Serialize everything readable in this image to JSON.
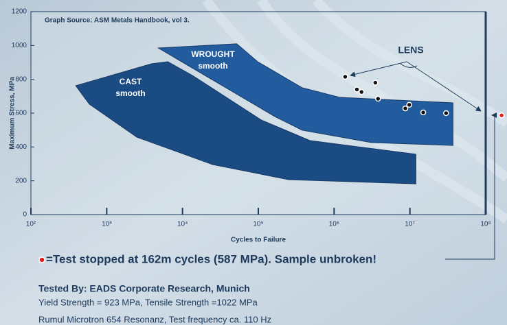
{
  "chart_data": {
    "type": "scatter",
    "annotation": "Graph Source: ASM Metals Handbook, vol 3.",
    "xlabel": "Cycles to Failure",
    "ylabel": "Maximum Stress, MPa",
    "xscale": "log",
    "xlim": [
      100,
      100000000
    ],
    "ylim": [
      0,
      1200
    ],
    "xticks": [
      {
        "value": 100,
        "label": "10²"
      },
      {
        "value": 1000,
        "label": "10³"
      },
      {
        "value": 10000,
        "label": "10⁴"
      },
      {
        "value": 100000,
        "label": "10⁵"
      },
      {
        "value": 1000000,
        "label": "10⁶"
      },
      {
        "value": 10000000,
        "label": "10⁷"
      },
      {
        "value": 100000000,
        "label": "10⁸"
      }
    ],
    "yticks": [
      0,
      200,
      400,
      600,
      800,
      1000,
      1200
    ],
    "regions": [
      {
        "name": "CAST",
        "note": "smooth",
        "color": "#1b4b83",
        "x": [
          390,
          3900,
          6400,
          13500,
          110000,
          480000,
          12000000,
          12000000,
          250000,
          25000,
          2500,
          590
        ],
        "values": [
          762,
          892,
          904,
          823,
          559,
          438,
          357,
          182,
          207,
          296,
          458,
          653
        ]
      },
      {
        "name": "WROUGHT",
        "note": "smooth",
        "color": "#225c9f",
        "x": [
          4800,
          52000,
          98000,
          380000,
          1200000,
          37000000,
          37000000,
          3100000,
          380000,
          165000
        ],
        "values": [
          985,
          1010,
          904,
          750,
          693,
          661,
          409,
          426,
          499,
          580
        ]
      }
    ],
    "series": [
      {
        "name": "LENS",
        "color": "#111111",
        "x": [
          1400000,
          2000000,
          2300000,
          3500000,
          3800000,
          8700000,
          9800000,
          15000000,
          30000000
        ],
        "values": [
          815,
          740,
          725,
          780,
          685,
          628,
          649,
          604,
          600
        ]
      },
      {
        "name": "=Test stopped at 162m cycles (587 MPa). Sample unbroken!",
        "color": "#e31b1b",
        "x": [
          162000000
        ],
        "values": [
          587
        ]
      }
    ]
  },
  "notes": [
    "Tested By: EADS Corporate Research, Munich",
    "Yield Strength = 923 MPa, Tensile Strength =1022 MPa",
    "Rumul Microtron 654 Resonanz, Test frequency ca. 110 Hz"
  ]
}
